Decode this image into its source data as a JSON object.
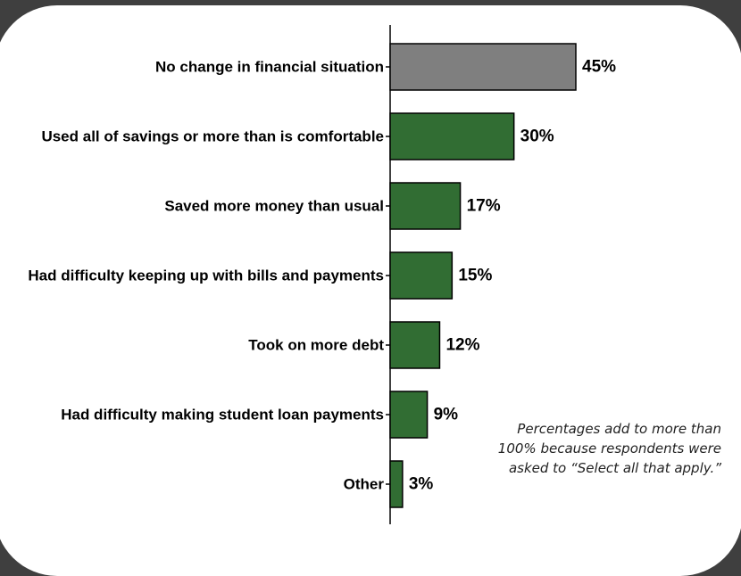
{
  "chart_data": {
    "type": "bar",
    "orientation": "horizontal",
    "categories": [
      "No change in financial situation",
      "Used all of savings or more than is comfortable",
      "Saved more money than usual",
      "Had difficulty keeping up with bills and payments",
      "Took on more debt",
      "Had difficulty making student loan payments",
      "Other"
    ],
    "values": [
      45,
      30,
      17,
      15,
      12,
      9,
      3
    ],
    "value_labels": [
      "45%",
      "30%",
      "17%",
      "15%",
      "12%",
      "9%",
      "3%"
    ],
    "bar_colors": [
      "#7f7f7f",
      "#316d33",
      "#316d33",
      "#316d33",
      "#316d33",
      "#316d33",
      "#316d33"
    ],
    "xlim": [
      0,
      50
    ],
    "grid": false,
    "legend": "none",
    "title": "",
    "xlabel": "",
    "ylabel": ""
  },
  "footnote": "Percentages add to more than 100% because respondents were asked to “Select all that apply.”",
  "colors": {
    "frame": "#3f3f3f",
    "background": "#ffffff",
    "neutral_bar": "#7f7f7f",
    "accent_bar": "#316d33"
  }
}
